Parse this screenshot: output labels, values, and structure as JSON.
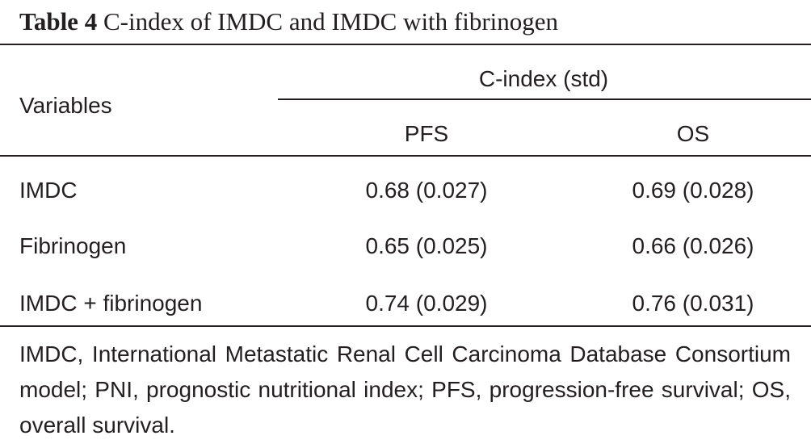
{
  "caption": {
    "label": "Table 4",
    "title": "C-index of IMDC and IMDC with fibrinogen"
  },
  "table": {
    "row_header": "Variables",
    "group_header": "C-index (std)",
    "columns": [
      "PFS",
      "OS"
    ],
    "rows": [
      {
        "variable": "IMDC",
        "pfs": "0.68 (0.027)",
        "os": "0.69 (0.028)"
      },
      {
        "variable": "Fibrinogen",
        "pfs": "0.65 (0.025)",
        "os": "0.66 (0.026)"
      },
      {
        "variable": "IMDC + fibrinogen",
        "pfs": "0.74 (0.029)",
        "os": "0.76 (0.031)"
      }
    ]
  },
  "footnote": "IMDC, International Metastatic Renal Cell Carcinoma Database Consortium model; PNI, prognostic nutritional index; PFS, progression-free survival; OS, overall survival."
}
